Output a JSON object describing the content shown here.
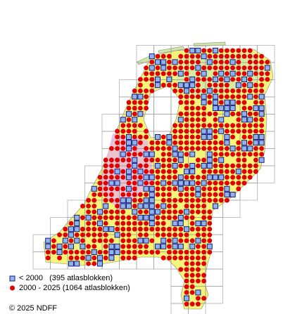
{
  "legend": [
    {
      "label": "< 2000   (395 atlasblokken)"
    },
    {
      "label": "2000 - 2025 (1064 atlasblokken)"
    }
  ],
  "footer": "© 2025 NDFF"
}
